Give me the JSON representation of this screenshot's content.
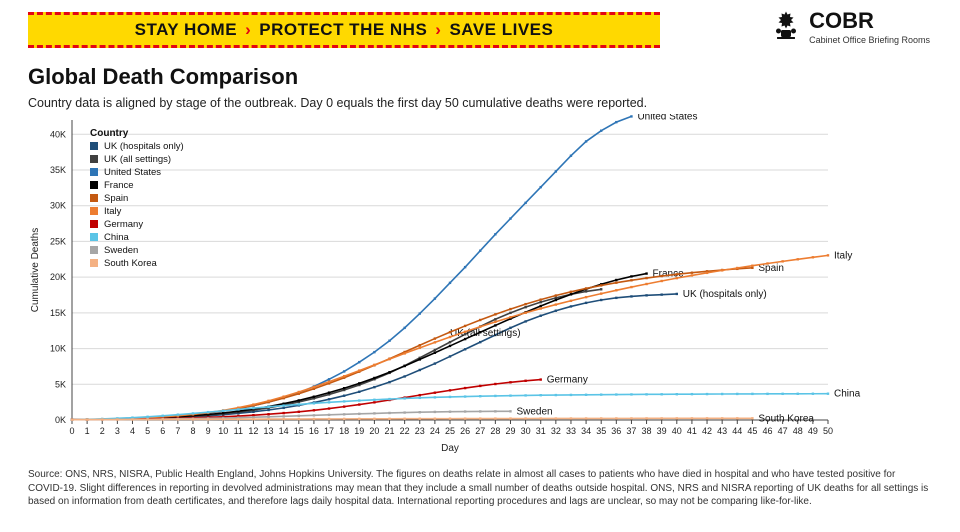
{
  "banner": {
    "part1": "STAY HOME",
    "part2": "PROTECT THE NHS",
    "part3": "SAVE LIVES",
    "bg": "#ffd900",
    "dash": "#e30613"
  },
  "cobr": {
    "label": "COBR",
    "sub": "Cabinet Office Briefing Rooms"
  },
  "title": "Global Death Comparison",
  "subtitle": "Country data is aligned by stage of the outbreak. Day 0 equals the first day 50 cumulative deaths were reported.",
  "chart": {
    "type": "line",
    "background": "#ffffff",
    "grid_color": "#d9d9d9",
    "axis_color": "#444444",
    "font_color": "#222222",
    "ylabel": "Cumulative Deaths",
    "xlabel": "Day",
    "legend_title": "Country",
    "label_fontsize": 10,
    "tick_fontsize": 9,
    "xlim": [
      0,
      50
    ],
    "ylim": [
      0,
      42000
    ],
    "xtick_step": 1,
    "yticks": [
      0,
      5000,
      10000,
      15000,
      20000,
      25000,
      30000,
      35000,
      40000
    ],
    "ytick_labels": [
      "0K",
      "5K",
      "10K",
      "15K",
      "20K",
      "25K",
      "30K",
      "35K",
      "40K"
    ],
    "line_width": 1.6,
    "marker_size": 2.4,
    "series": [
      {
        "name": "UK (hospitals only)",
        "color": "#1f4e79",
        "end_label": "UK (hospitals only)",
        "data": [
          50,
          60,
          80,
          110,
          150,
          200,
          270,
          350,
          450,
          580,
          740,
          930,
          1150,
          1400,
          1700,
          2050,
          2450,
          2900,
          3400,
          3950,
          4600,
          5300,
          6100,
          7000,
          7900,
          8900,
          9900,
          10900,
          11900,
          12900,
          13800,
          14600,
          15300,
          15900,
          16400,
          16800,
          17100,
          17300,
          17450,
          17550,
          17650
        ]
      },
      {
        "name": "UK (all settings)",
        "color": "#404040",
        "end_label": "UK (all settings)",
        "end_label_pos": "mid",
        "data": [
          50,
          65,
          90,
          125,
          170,
          230,
          310,
          410,
          530,
          690,
          880,
          1100,
          1370,
          1700,
          2080,
          2520,
          3020,
          3580,
          4200,
          4900,
          5700,
          6600,
          7600,
          8700,
          9800,
          10900,
          12000,
          13100,
          14100,
          15000,
          15800,
          16500,
          17100,
          17600,
          18000,
          18300
        ]
      },
      {
        "name": "United States",
        "color": "#2e75b6",
        "end_label": "United States",
        "data": [
          50,
          70,
          100,
          150,
          220,
          310,
          420,
          560,
          740,
          970,
          1250,
          1600,
          2000,
          2500,
          3100,
          3800,
          4700,
          5700,
          6800,
          8100,
          9500,
          11100,
          12900,
          14900,
          17000,
          19200,
          21400,
          23700,
          26000,
          28200,
          30400,
          32600,
          34800,
          37000,
          39000,
          40500,
          41700,
          42500
        ]
      },
      {
        "name": "France",
        "color": "#000000",
        "end_label": "France",
        "data": [
          50,
          70,
          100,
          140,
          190,
          260,
          350,
          460,
          600,
          770,
          980,
          1230,
          1530,
          1880,
          2280,
          2740,
          3260,
          3830,
          4450,
          5130,
          5880,
          6690,
          7560,
          8480,
          9420,
          10370,
          11330,
          12290,
          13240,
          14180,
          15090,
          15960,
          16800,
          17590,
          18330,
          19000,
          19600,
          20100,
          20500
        ]
      },
      {
        "name": "Spain",
        "color": "#c45911",
        "end_label": "Spain",
        "data": [
          50,
          75,
          110,
          160,
          225,
          320,
          440,
          590,
          770,
          1000,
          1280,
          1620,
          2030,
          2510,
          3060,
          3680,
          4370,
          5120,
          5920,
          6770,
          7660,
          8580,
          9520,
          10470,
          11400,
          12300,
          13170,
          14000,
          14790,
          15530,
          16220,
          16850,
          17430,
          17950,
          18420,
          18840,
          19220,
          19560,
          19870,
          20150,
          20400,
          20620,
          20820,
          21000,
          21160,
          21310
        ]
      },
      {
        "name": "Italy",
        "color": "#ed7d31",
        "end_label": "Italy",
        "data": [
          50,
          80,
          120,
          180,
          255,
          350,
          470,
          620,
          810,
          1050,
          1350,
          1720,
          2160,
          2680,
          3270,
          3920,
          4620,
          5360,
          6130,
          6920,
          7720,
          8520,
          9320,
          10100,
          10870,
          11620,
          12350,
          13060,
          13740,
          14390,
          15010,
          15600,
          16160,
          16690,
          17200,
          17690,
          18160,
          18610,
          19040,
          19460,
          19860,
          20240,
          20600,
          20950,
          21280,
          21600,
          21910,
          22210,
          22500,
          22780,
          23050
        ]
      },
      {
        "name": "Germany",
        "color": "#c00000",
        "end_label": "Germany",
        "data": [
          50,
          60,
          75,
          95,
          120,
          150,
          190,
          240,
          300,
          370,
          450,
          550,
          670,
          810,
          970,
          1150,
          1360,
          1600,
          1870,
          2160,
          2470,
          2800,
          3140,
          3480,
          3820,
          4150,
          4470,
          4770,
          5040,
          5280,
          5490,
          5660
        ]
      },
      {
        "name": "China",
        "color": "#5bc4e6",
        "end_label": "China",
        "data": [
          50,
          90,
          150,
          230,
          330,
          450,
          590,
          750,
          920,
          1100,
          1290,
          1480,
          1670,
          1850,
          2020,
          2180,
          2330,
          2470,
          2600,
          2720,
          2830,
          2930,
          3020,
          3100,
          3170,
          3230,
          3280,
          3330,
          3370,
          3410,
          3440,
          3470,
          3490,
          3510,
          3530,
          3550,
          3565,
          3580,
          3590,
          3600,
          3610,
          3620,
          3630,
          3640,
          3650,
          3655,
          3660,
          3665,
          3670,
          3675,
          3680
        ]
      },
      {
        "name": "Sweden",
        "color": "#a6a6a6",
        "end_label": "Sweden",
        "data": [
          50,
          55,
          60,
          70,
          85,
          105,
          130,
          160,
          195,
          235,
          280,
          330,
          385,
          445,
          510,
          580,
          650,
          720,
          790,
          860,
          925,
          985,
          1040,
          1090,
          1130,
          1160,
          1185,
          1200,
          1210,
          1215
        ]
      },
      {
        "name": "South Korea",
        "color": "#f4b183",
        "end_label": "South Korea",
        "data": [
          50,
          55,
          60,
          66,
          72,
          78,
          84,
          90,
          96,
          102,
          108,
          114,
          120,
          126,
          132,
          138,
          144,
          150,
          156,
          162,
          167,
          172,
          177,
          182,
          187,
          191,
          195,
          199,
          203,
          207,
          210,
          213,
          216,
          219,
          222,
          225,
          227,
          229,
          231,
          233,
          235,
          237,
          239,
          240,
          241,
          242
        ]
      }
    ],
    "end_label_fontsize": 10
  },
  "source": "Source: ONS, NRS, NISRA, Public Health England, Johns Hopkins University. The figures on deaths relate in almost all cases to patients who have died in hospital and who have tested positive for COVID-19. Slight differences in reporting in devolved administrations may mean that they include a small number of deaths outside hospital. ONS, NRS and NISRA reporting of UK deaths for all settings is based on information from death certificates, and therefore lags daily hospital data. International reporting procedures and lags are unclear, so may not be comparing like-for-like."
}
